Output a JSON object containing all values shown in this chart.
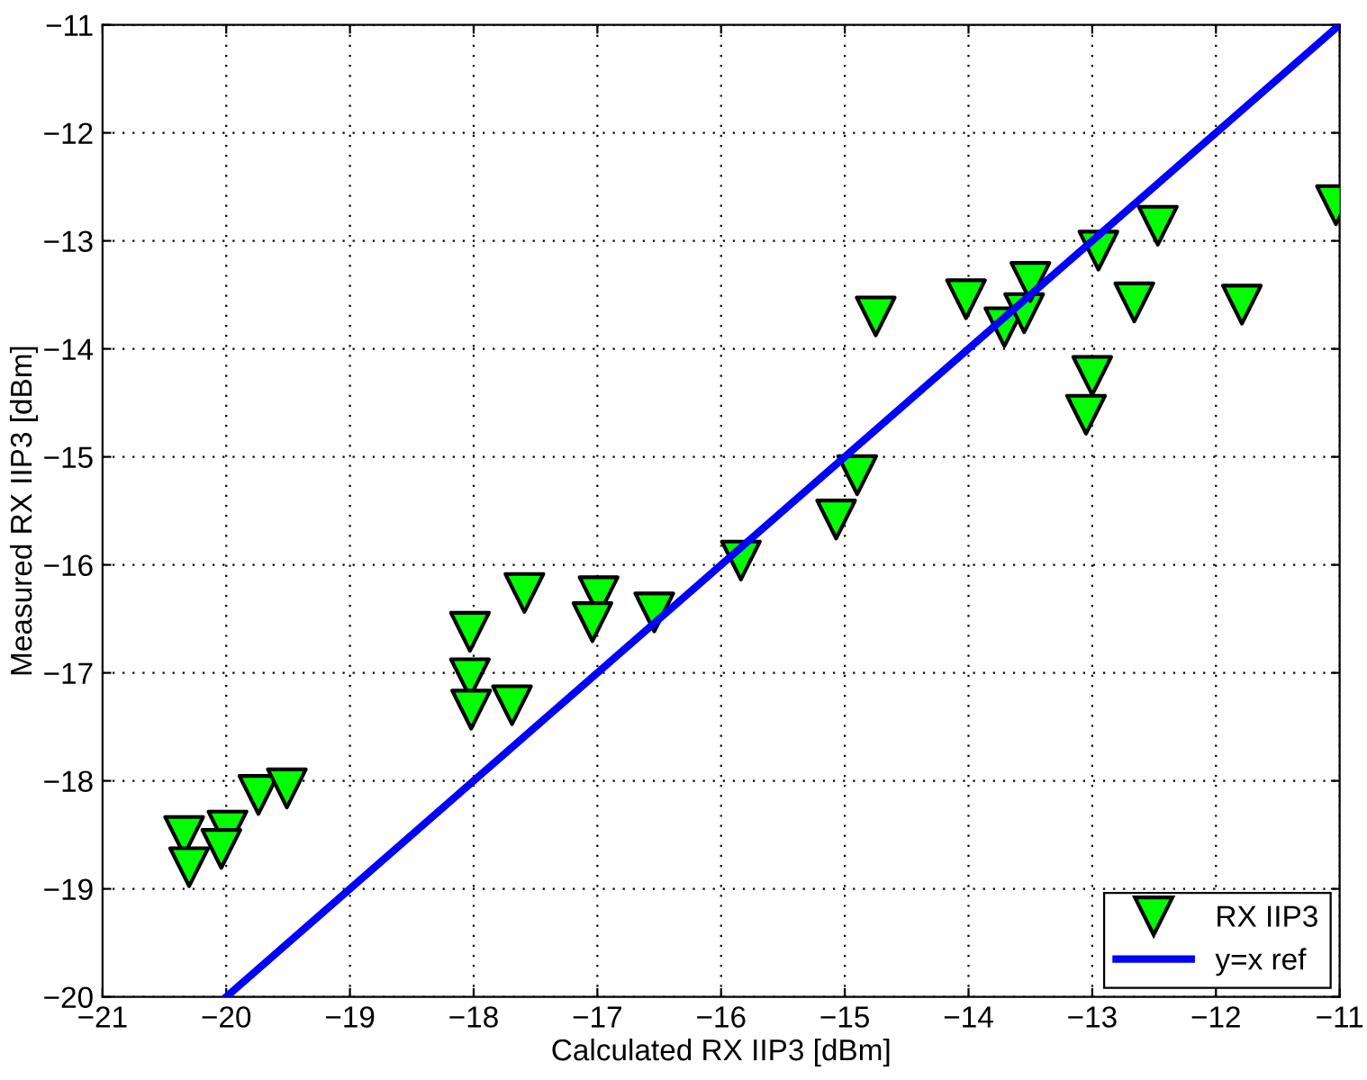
{
  "chart_data": {
    "type": "scatter",
    "xlabel": "Calculated RX IIP3 [dBm]",
    "ylabel": "Measured RX IIP3 [dBm]",
    "xlim": [
      -21,
      -11
    ],
    "ylim": [
      -20,
      -11
    ],
    "xticks": [
      -21,
      -20,
      -19,
      -18,
      -17,
      -16,
      -15,
      -14,
      -13,
      -12,
      -11
    ],
    "yticks": [
      -20,
      -19,
      -18,
      -17,
      -16,
      -15,
      -14,
      -13,
      -12,
      -11
    ],
    "grid": true,
    "legend": "bottom right",
    "series": [
      {
        "name": "RX IIP3",
        "color": "#00ff00",
        "marker": "triangle",
        "x": [
          -20.34,
          -20.3,
          -19.99,
          -20.04,
          -19.74,
          -19.51,
          -18.03,
          -18.03,
          -18.02,
          -17.69,
          -17.59,
          -16.99,
          -17.04,
          -16.54,
          -15.84,
          -15.07,
          -14.9,
          -14.75,
          -14.02,
          -13.71,
          -13.55,
          -13.5,
          -12.95,
          -13.0,
          -13.05,
          -12.66,
          -12.47,
          -11.79,
          -11.03
        ],
        "values": [
          -18.51,
          -18.8,
          -18.46,
          -18.63,
          -18.13,
          -18.07,
          -16.62,
          -17.05,
          -17.34,
          -17.3,
          -16.26,
          -16.29,
          -16.53,
          -16.44,
          -15.96,
          -15.58,
          -15.17,
          -13.7,
          -13.54,
          -13.8,
          -13.67,
          -13.38,
          -13.09,
          -14.25,
          -14.61,
          -13.57,
          -12.86,
          -13.59,
          -12.67
        ]
      },
      {
        "name": "y=x ref",
        "type": "line",
        "color": "#0000ff",
        "line_style": "solid",
        "marker": "none",
        "x": [
          -20,
          -11
        ],
        "values": [
          -20,
          -11
        ]
      }
    ]
  }
}
